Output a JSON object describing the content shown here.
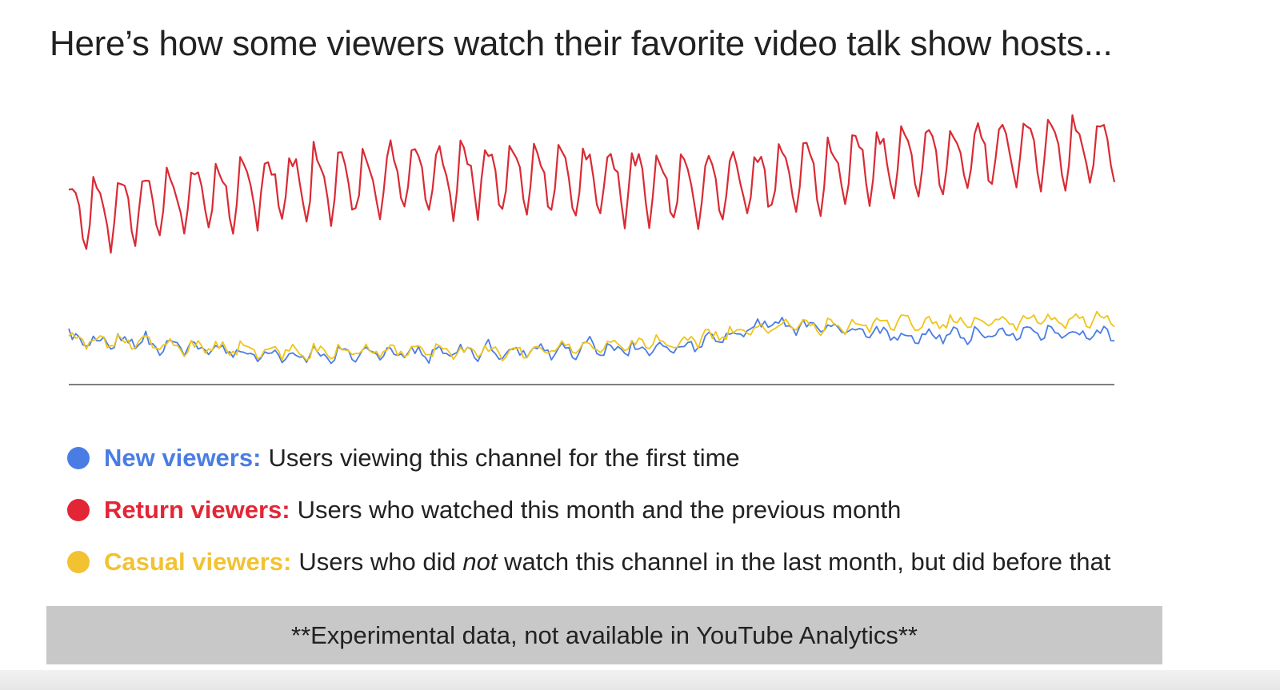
{
  "title": "Here’s how some viewers watch their favorite video talk show hosts...",
  "chart_data": {
    "type": "line",
    "title": "",
    "xlabel": "",
    "ylabel": "",
    "ylim": [
      0,
      100
    ],
    "grid": false,
    "n_points": 300,
    "series": [
      {
        "name": "Return viewers",
        "color": "#d92b35",
        "trend": [
          [
            0,
            52
          ],
          [
            60,
            61
          ],
          [
            120,
            64
          ],
          [
            180,
            60
          ],
          [
            240,
            69
          ],
          [
            299,
            73
          ]
        ],
        "weekly_amplitude": 10
      },
      {
        "name": "New viewers",
        "color": "#4a7de4",
        "trend": [
          [
            0,
            14
          ],
          [
            60,
            9
          ],
          [
            120,
            10
          ],
          [
            175,
            11
          ],
          [
            200,
            19
          ],
          [
            240,
            15
          ],
          [
            299,
            16
          ]
        ],
        "weekly_amplitude": 1.6
      },
      {
        "name": "Casual viewers",
        "color": "#f0c419",
        "trend": [
          [
            0,
            14
          ],
          [
            60,
            10
          ],
          [
            120,
            10
          ],
          [
            175,
            13
          ],
          [
            200,
            18
          ],
          [
            240,
            19
          ],
          [
            299,
            20
          ]
        ],
        "weekly_amplitude": 1.6
      }
    ]
  },
  "legend": [
    {
      "name": "New viewers:",
      "desc_before": "Users viewing this channel for the first time",
      "desc_em": "",
      "desc_after": "",
      "color": "#4a7de4"
    },
    {
      "name": "Return viewers:",
      "desc_before": "Users who watched this month and the previous month",
      "desc_em": "",
      "desc_after": "",
      "color": "#e32636"
    },
    {
      "name": "Casual viewers:",
      "desc_before": "Users who did ",
      "desc_em": "not",
      "desc_after": " watch this channel in the last month, but did before that",
      "color": "#f2c232"
    }
  ],
  "note": "**Experimental data, not available in YouTube Analytics**"
}
